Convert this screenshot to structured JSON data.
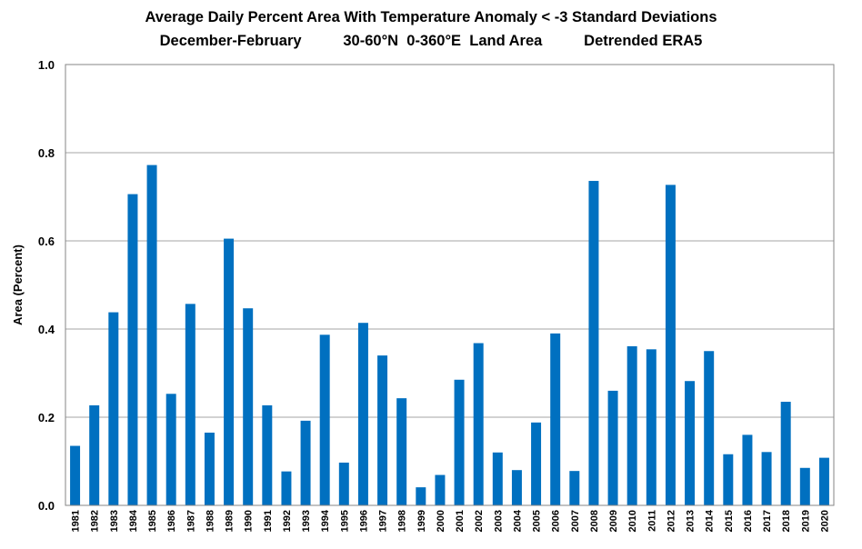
{
  "chart_data": {
    "type": "bar",
    "title": "Average Daily Percent Area With Temperature Anomaly < -3 Standard Deviations",
    "subtitle": "December-February          30-60°N  0-360°E  Land Area          Detrended ERA5",
    "xlabel": "",
    "ylabel": "Area (Percent)",
    "ylim": [
      0,
      1.0
    ],
    "yticks": [
      "0.0",
      "0.2",
      "0.4",
      "0.6",
      "0.8",
      "1.0"
    ],
    "grid": true,
    "bar_color": "#0070c0",
    "categories": [
      "1981",
      "1982",
      "1983",
      "1984",
      "1985",
      "1986",
      "1987",
      "1988",
      "1989",
      "1990",
      "1991",
      "1992",
      "1993",
      "1994",
      "1995",
      "1996",
      "1997",
      "1998",
      "1999",
      "2000",
      "2001",
      "2002",
      "2003",
      "2004",
      "2005",
      "2006",
      "2007",
      "2008",
      "2009",
      "2010",
      "2011",
      "2012",
      "2013",
      "2014",
      "2015",
      "2016",
      "2017",
      "2018",
      "2019",
      "2020"
    ],
    "values": [
      0.135,
      0.227,
      0.438,
      0.706,
      0.772,
      0.253,
      0.457,
      0.165,
      0.605,
      0.447,
      0.227,
      0.077,
      0.192,
      0.387,
      0.097,
      0.414,
      0.34,
      0.243,
      0.041,
      0.069,
      0.285,
      0.368,
      0.12,
      0.08,
      0.188,
      0.39,
      0.078,
      0.736,
      0.26,
      0.361,
      0.354,
      0.727,
      0.282,
      0.35,
      0.116,
      0.16,
      0.121,
      0.235,
      0.085,
      0.108
    ]
  }
}
